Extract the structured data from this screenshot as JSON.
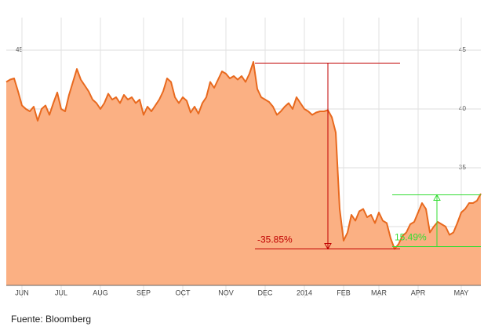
{
  "chart_data": {
    "type": "area",
    "categories": [
      null,
      null,
      null,
      null,
      "JUN",
      null,
      null,
      null,
      null,
      null,
      null,
      null,
      null,
      null,
      "JUL",
      null,
      null,
      null,
      null,
      null,
      null,
      null,
      null,
      null,
      "AUG",
      null,
      null,
      null,
      null,
      null,
      null,
      null,
      null,
      null,
      null,
      "SEP",
      null,
      null,
      null,
      null,
      null,
      null,
      null,
      null,
      null,
      "OCT",
      null,
      null,
      null,
      null,
      null,
      null,
      null,
      null,
      null,
      null,
      "NOV",
      null,
      null,
      null,
      null,
      null,
      null,
      null,
      null,
      null,
      "DEC",
      null,
      null,
      null,
      null,
      null,
      null,
      null,
      null,
      null,
      "2014",
      null,
      null,
      null,
      null,
      null,
      null,
      null,
      null,
      null,
      "FEB",
      null,
      null,
      null,
      null,
      null,
      null,
      null,
      null,
      "MAR",
      null,
      null,
      null,
      null,
      null,
      null,
      null,
      null,
      null,
      "APR",
      null,
      null,
      null,
      null,
      null,
      null,
      null,
      null,
      null,
      null,
      "MAY",
      null,
      null,
      null,
      null,
      null
    ],
    "values": [
      42.3,
      42.5,
      42.6,
      41.5,
      40.3,
      40.0,
      39.8,
      40.2,
      39.0,
      40.0,
      40.3,
      39.5,
      40.5,
      41.4,
      40.0,
      39.8,
      41.2,
      42.3,
      43.4,
      42.5,
      42.0,
      41.5,
      40.8,
      40.5,
      40.0,
      40.5,
      41.3,
      40.8,
      41.0,
      40.5,
      41.2,
      40.8,
      41.0,
      40.5,
      40.8,
      39.5,
      40.2,
      39.8,
      40.3,
      40.8,
      41.5,
      42.6,
      42.3,
      41.0,
      40.5,
      41.0,
      40.7,
      39.7,
      40.2,
      39.6,
      40.5,
      41.0,
      42.3,
      41.8,
      42.5,
      43.2,
      43.0,
      42.6,
      42.8,
      42.5,
      42.8,
      42.3,
      43.0,
      44.0,
      41.7,
      41.0,
      40.8,
      40.6,
      40.2,
      39.5,
      39.8,
      40.2,
      40.5,
      40.0,
      41.0,
      40.5,
      40.0,
      39.8,
      39.5,
      39.7,
      39.8,
      39.8,
      39.9,
      39.3,
      38.0,
      31.5,
      28.8,
      29.5,
      31.0,
      30.5,
      31.3,
      31.5,
      30.8,
      31.0,
      30.3,
      31.2,
      30.5,
      30.3,
      29.0,
      28.1,
      28.5,
      29.2,
      29.5,
      30.2,
      30.4,
      31.2,
      32.0,
      31.5,
      29.5,
      30.0,
      30.4,
      30.2,
      30.0,
      29.3,
      29.5,
      30.3,
      31.2,
      31.5,
      32.0,
      32.0,
      32.2,
      32.8
    ],
    "color": "#e8691e",
    "fill": "#fbb083",
    "ylim": [
      25,
      47.5
    ],
    "yticks": [
      30,
      35,
      40,
      45
    ],
    "grid": true,
    "annotations": [
      {
        "label": "-35.85%",
        "from": 43.9,
        "to": 28.1,
        "start": 63.4,
        "end": 100.4,
        "at": 82,
        "color": "#c00000"
      },
      {
        "label": "15.49%",
        "from": 28.3,
        "to": 32.7,
        "start": 98.4,
        "end": 121,
        "at": 109.8,
        "color": "#33dd33"
      }
    ],
    "source": "Fuente: Bloomberg"
  }
}
